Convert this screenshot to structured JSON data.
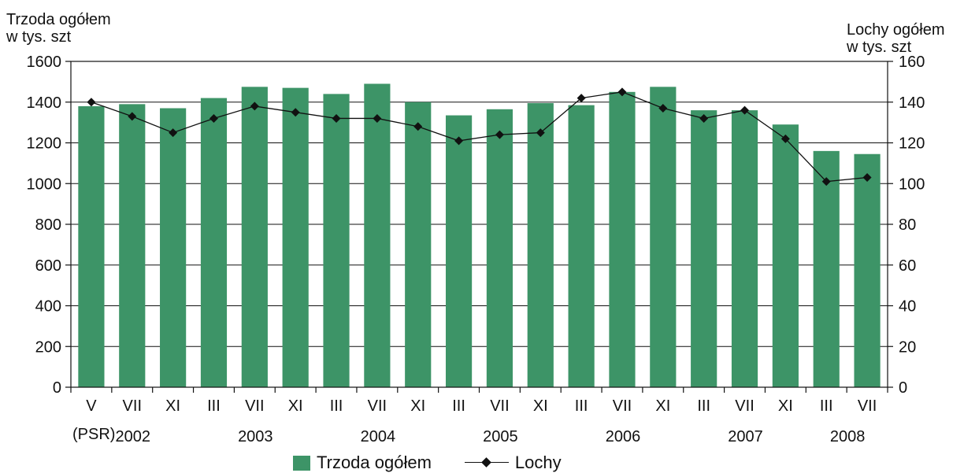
{
  "chart_data": {
    "type": "bar",
    "combo": "bar + line (secondary axis)",
    "y_left_label": [
      "Trzoda ogółem",
      "w tys. szt"
    ],
    "y_right_label": [
      "Lochy ogółem",
      "w tys. szt"
    ],
    "y_left_range": [
      0,
      1600
    ],
    "y_left_ticks": [
      "0",
      "200",
      "400",
      "600",
      "800",
      "1000",
      "1200",
      "1400",
      "1600"
    ],
    "y_right_range": [
      0,
      160
    ],
    "y_right_ticks": [
      "0",
      "20",
      "40",
      "60",
      "80",
      "100",
      "120",
      "140",
      "160"
    ],
    "grid": "horizontal gridlines on",
    "categories": [
      "V",
      "VII",
      "XI",
      "III",
      "VII",
      "XI",
      "III",
      "VII",
      "XI",
      "III",
      "VII",
      "XI",
      "III",
      "VII",
      "XI",
      "III",
      "VII",
      "XI",
      "III",
      "VII"
    ],
    "extra_label": "(PSR)",
    "year_labels": [
      {
        "label": "2002",
        "index": 1.0
      },
      {
        "label": "2003",
        "index": 4.0
      },
      {
        "label": "2004",
        "index": 7.0
      },
      {
        "label": "2005",
        "index": 10.0
      },
      {
        "label": "2006",
        "index": 13.0
      },
      {
        "label": "2007",
        "index": 16.0
      },
      {
        "label": "2008",
        "index": 18.5
      }
    ],
    "series": [
      {
        "name": "Trzoda ogółem",
        "type": "bar",
        "axis": "left",
        "color": "#3d9467",
        "values": [
          1380,
          1390,
          1370,
          1420,
          1475,
          1470,
          1440,
          1490,
          1400,
          1335,
          1365,
          1395,
          1385,
          1450,
          1475,
          1360,
          1360,
          1290,
          1160,
          1145
        ]
      },
      {
        "name": "Lochy",
        "type": "line",
        "axis": "right",
        "color": "#111111",
        "marker": "diamond",
        "values": [
          140,
          133,
          125,
          132,
          138,
          135,
          132,
          132,
          128,
          121,
          124,
          125,
          142,
          145,
          137,
          132,
          136,
          122,
          101,
          103
        ]
      }
    ],
    "legend_position": "bottom-center"
  }
}
